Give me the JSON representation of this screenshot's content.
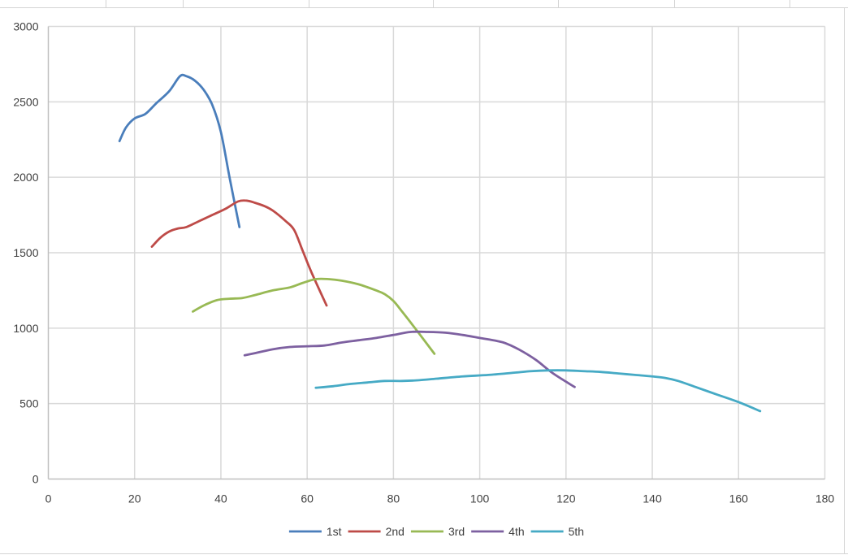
{
  "chart_data": {
    "type": "line",
    "title": "",
    "xlabel": "",
    "ylabel": "",
    "xlim": [
      0,
      180
    ],
    "ylim": [
      0,
      3000
    ],
    "x_ticks": [
      "0",
      "20",
      "40",
      "60",
      "80",
      "100",
      "120",
      "140",
      "160",
      "180"
    ],
    "y_ticks": [
      "0",
      "500",
      "1000",
      "1500",
      "2000",
      "2500",
      "3000"
    ],
    "grid": true,
    "legend_position": "bottom",
    "series": [
      {
        "name": "1st",
        "color": "#4a7ebb",
        "x": [
          16.5,
          18,
          20,
          22.5,
          25,
          28,
          30.5,
          32,
          34,
          36,
          38,
          40,
          42,
          44.3
        ],
        "y": [
          2240,
          2330,
          2390,
          2420,
          2490,
          2570,
          2670,
          2670,
          2640,
          2580,
          2480,
          2300,
          2000,
          1670
        ]
      },
      {
        "name": "2nd",
        "color": "#be4b48",
        "x": [
          24,
          26,
          28,
          30,
          32,
          35,
          38,
          41,
          44,
          46,
          48,
          50,
          52,
          55,
          57,
          59,
          61,
          64.5
        ],
        "y": [
          1540,
          1600,
          1640,
          1660,
          1670,
          1710,
          1750,
          1790,
          1840,
          1845,
          1830,
          1810,
          1780,
          1710,
          1650,
          1510,
          1370,
          1150
        ]
      },
      {
        "name": "3rd",
        "color": "#98b954",
        "x": [
          33.5,
          36,
          39,
          42,
          45,
          48,
          52,
          56,
          59,
          62,
          65,
          68,
          72,
          76,
          78,
          80,
          82,
          85,
          89.5
        ],
        "y": [
          1110,
          1150,
          1185,
          1195,
          1200,
          1220,
          1250,
          1270,
          1300,
          1325,
          1325,
          1315,
          1290,
          1250,
          1225,
          1180,
          1110,
          1000,
          830
        ]
      },
      {
        "name": "4th",
        "color": "#7d60a0",
        "x": [
          45.5,
          48,
          52,
          56,
          60,
          64,
          68,
          72,
          76,
          80,
          84,
          88,
          92,
          96,
          100,
          104,
          106,
          109,
          113,
          117,
          122
        ],
        "y": [
          820,
          835,
          860,
          875,
          880,
          885,
          905,
          920,
          935,
          955,
          975,
          975,
          970,
          955,
          935,
          915,
          900,
          860,
          790,
          700,
          610
        ]
      },
      {
        "name": "5th",
        "color": "#46aac5",
        "x": [
          62,
          66,
          70,
          74,
          78,
          82,
          86,
          90,
          96,
          102,
          108,
          112,
          116,
          120,
          124,
          128,
          132,
          136,
          140,
          143,
          146,
          150,
          155,
          160,
          165
        ],
        "y": [
          605,
          615,
          630,
          640,
          650,
          650,
          655,
          665,
          680,
          690,
          705,
          715,
          720,
          720,
          715,
          710,
          700,
          690,
          680,
          670,
          650,
          610,
          560,
          510,
          450
        ]
      }
    ]
  }
}
